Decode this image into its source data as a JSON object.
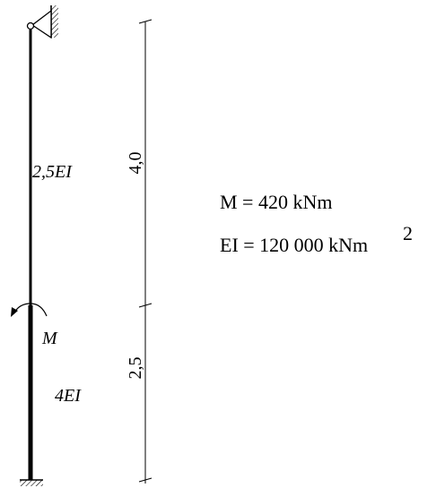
{
  "members": {
    "upper": {
      "stiffness_label": "2,5EI"
    },
    "lower": {
      "stiffness_label": "4EI"
    }
  },
  "load": {
    "moment_label": "M"
  },
  "dimensions": {
    "upper_length": "4,0",
    "lower_length": "2,5"
  },
  "given": {
    "moment_line": "M = 420  kNm",
    "stiffness_line": "EI = 120 000 kNm",
    "stiffness_exponent": "2"
  },
  "colors": {
    "ink": "#000000",
    "background": "#ffffff"
  }
}
